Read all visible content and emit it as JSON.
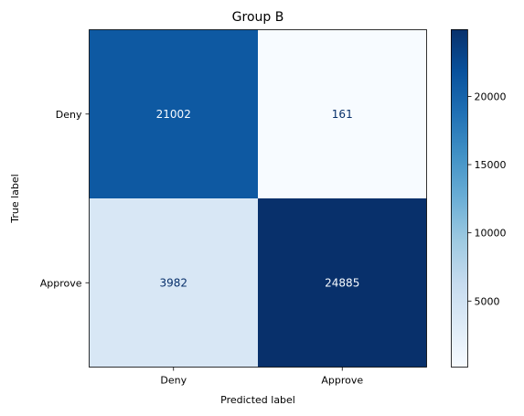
{
  "chart_data": {
    "type": "heatmap",
    "title": "Group B",
    "xlabel": "Predicted label",
    "ylabel": "True label",
    "x_categories": [
      "Deny",
      "Approve"
    ],
    "y_categories": [
      "Deny",
      "Approve"
    ],
    "values": [
      [
        21002,
        161
      ],
      [
        3982,
        24885
      ]
    ],
    "colormap": "Blues",
    "color_range": [
      161,
      24885
    ],
    "colorbar_ticks": [
      5000,
      10000,
      15000,
      20000
    ],
    "colorbar_tick_labels": [
      "5000",
      "10000",
      "15000",
      "20000"
    ],
    "grid": false
  }
}
